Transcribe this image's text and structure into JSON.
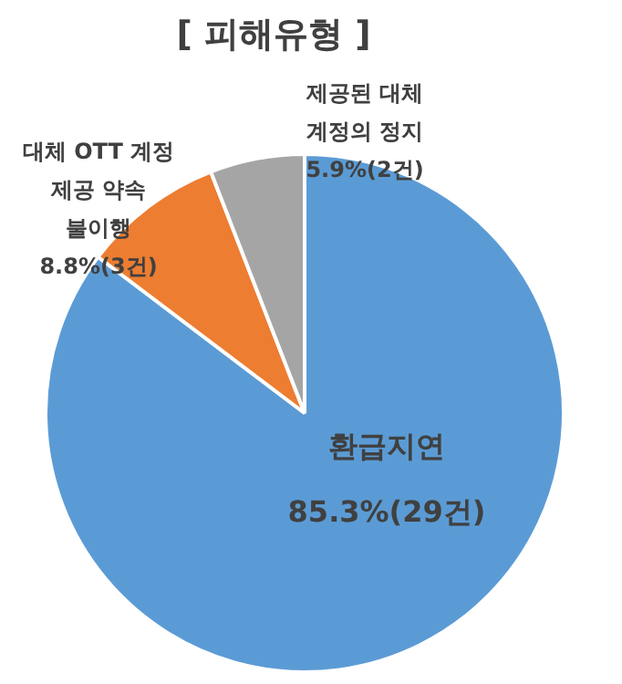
{
  "chart_data": {
    "type": "pie",
    "title": "[ 피해유형 ]",
    "categories": [
      "환급지연",
      "대체 OTT 계정 제공 약속 불이행",
      "제공된 대체 계정의 정지"
    ],
    "values": [
      85.3,
      8.8,
      5.9
    ],
    "value_labels": [
      "85.3%(29건)",
      "8.8%(3건)",
      "5.9%(2건)"
    ],
    "colors": [
      "#5b9bd5",
      "#ed7d31",
      "#a5a5a5"
    ],
    "legend": false
  }
}
